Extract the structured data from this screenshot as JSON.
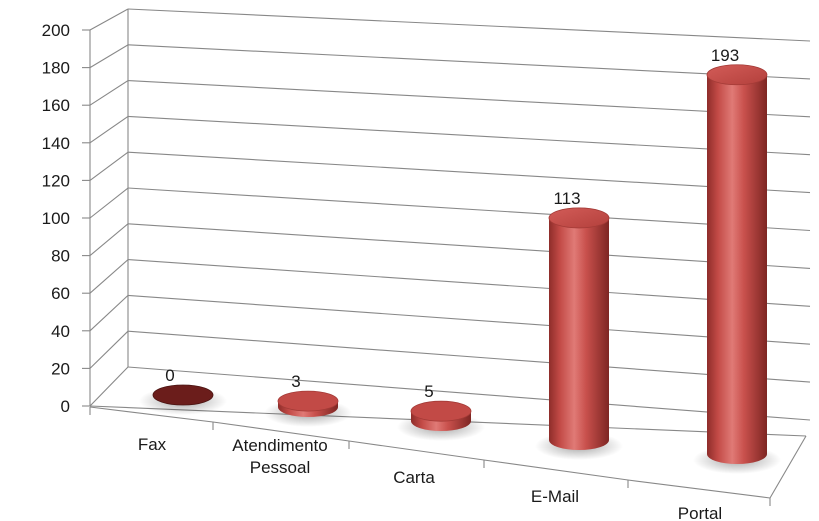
{
  "chart_data": {
    "type": "bar",
    "categories": [
      "Fax",
      "Atendimento Pessoal",
      "Carta",
      "E-Mail",
      "Portal"
    ],
    "category_label_lines": [
      [
        "Fax"
      ],
      [
        "Atendimento",
        "Pessoal"
      ],
      [
        "Carta"
      ],
      [
        "E-Mail"
      ],
      [
        "Portal"
      ]
    ],
    "values": [
      0,
      3,
      5,
      113,
      193
    ],
    "data_labels": [
      "0",
      "3",
      "5",
      "113",
      "193"
    ],
    "ylim": [
      0,
      200
    ],
    "yticks": [
      "0",
      "20",
      "40",
      "60",
      "80",
      "100",
      "120",
      "140",
      "160",
      "180",
      "200"
    ],
    "title": "",
    "xlabel": "",
    "ylabel": "",
    "grid": true,
    "legend": "none",
    "style": "3d-cylinder",
    "bar_color": "#c0504d",
    "zero_bar_color": "#6b1d1b",
    "grid_color": "#888888"
  }
}
